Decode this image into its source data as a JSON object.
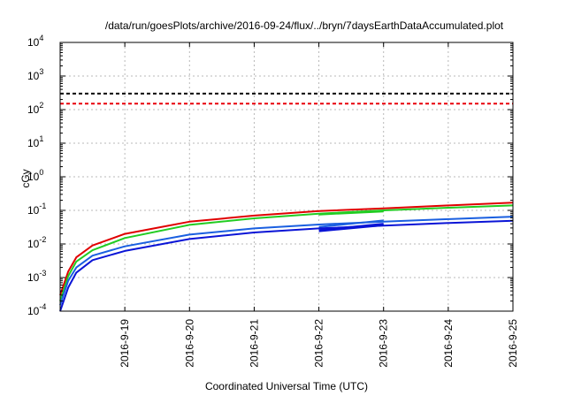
{
  "chart_data": {
    "type": "line",
    "title": "/data/run/goesPlots/archive/2016-09-24/flux/../bryn/7daysEarthDataAccumulated.plot",
    "xlabel": "Coordinated Universal Time (UTC)",
    "ylabel": "cGy",
    "x_tick_labels": [
      "2016-9-19",
      "2016-9-20",
      "2016-9-21",
      "2016-9-22",
      "2016-9-23",
      "2016-9-24",
      "2016-9-25"
    ],
    "y_tick_labels": [
      {
        "base": "10",
        "exp": "-4"
      },
      {
        "base": "10",
        "exp": "-3"
      },
      {
        "base": "10",
        "exp": "-2"
      },
      {
        "base": "10",
        "exp": "-1"
      },
      {
        "base": "10",
        "exp": "0"
      },
      {
        "base": "10",
        "exp": "1"
      },
      {
        "base": "10",
        "exp": "2"
      },
      {
        "base": "10",
        "exp": "3"
      },
      {
        "base": "10",
        "exp": "4"
      }
    ],
    "xlim": [
      "2016-09-18T00:00",
      "2016-09-25T00:00"
    ],
    "ylim": [
      0.0001,
      10000
    ],
    "yscale": "log",
    "grid": true,
    "reference_lines": [
      {
        "y": 300,
        "color": "#000000",
        "style": "dashed"
      },
      {
        "y": 150,
        "color": "#e8000b",
        "style": "dashed"
      }
    ],
    "series": [
      {
        "color": "#e00000",
        "segments": [
          [
            [
              "2016-09-18T00:00",
              0.0003
            ],
            [
              "2016-09-18T03:00",
              0.0015
            ],
            [
              "2016-09-18T06:00",
              0.004
            ],
            [
              "2016-09-18T12:00",
              0.009
            ],
            [
              "2016-09-19T00:00",
              0.02
            ],
            [
              "2016-09-20T00:00",
              0.046
            ],
            [
              "2016-09-21T00:00",
              0.07
            ],
            [
              "2016-09-22T00:00",
              0.095
            ],
            [
              "2016-09-23T00:00",
              0.115
            ],
            [
              "2016-09-24T00:00",
              0.14
            ],
            [
              "2016-09-25T00:00",
              0.17
            ]
          ]
        ]
      },
      {
        "color": "#22cc22",
        "segments": [
          [
            [
              "2016-09-18T00:00",
              0.0002
            ],
            [
              "2016-09-18T03:00",
              0.0011
            ],
            [
              "2016-09-18T06:00",
              0.003
            ],
            [
              "2016-09-18T12:00",
              0.0065
            ],
            [
              "2016-09-19T00:00",
              0.015
            ],
            [
              "2016-09-20T00:00",
              0.037
            ],
            [
              "2016-09-21T00:00",
              0.058
            ],
            [
              "2016-09-22T00:00",
              0.08
            ],
            [
              "2016-09-23T00:00",
              0.1
            ],
            [
              "2016-09-24T00:00",
              0.12
            ],
            [
              "2016-09-25T00:00",
              0.14
            ]
          ],
          [
            [
              "2016-09-22T00:00",
              0.075
            ],
            [
              "2016-09-23T00:00",
              0.093
            ]
          ]
        ]
      },
      {
        "color": "#1a5fe0",
        "segments": [
          [
            [
              "2016-09-18T00:00",
              0.00015
            ],
            [
              "2016-09-18T03:00",
              0.0008
            ],
            [
              "2016-09-18T06:00",
              0.002
            ],
            [
              "2016-09-18T12:00",
              0.0045
            ],
            [
              "2016-09-19T00:00",
              0.0085
            ],
            [
              "2016-09-20T00:00",
              0.019
            ],
            [
              "2016-09-21T00:00",
              0.029
            ],
            [
              "2016-09-22T00:00",
              0.038
            ],
            [
              "2016-09-23T00:00",
              0.046
            ],
            [
              "2016-09-24T00:00",
              0.055
            ],
            [
              "2016-09-25T00:00",
              0.065
            ]
          ],
          [
            [
              "2016-09-22T00:00",
              0.032
            ],
            [
              "2016-09-23T00:00",
              0.05
            ]
          ]
        ]
      },
      {
        "color": "#0a14d6",
        "segments": [
          [
            [
              "2016-09-18T00:00",
              0.0001
            ],
            [
              "2016-09-18T03:00",
              0.0005
            ],
            [
              "2016-09-18T06:00",
              0.0014
            ],
            [
              "2016-09-18T12:00",
              0.0033
            ],
            [
              "2016-09-19T00:00",
              0.0062
            ],
            [
              "2016-09-20T00:00",
              0.014
            ],
            [
              "2016-09-21T00:00",
              0.022
            ],
            [
              "2016-09-22T00:00",
              0.029
            ],
            [
              "2016-09-23T00:00",
              0.035
            ],
            [
              "2016-09-24T00:00",
              0.042
            ],
            [
              "2016-09-25T00:00",
              0.049
            ]
          ],
          [
            [
              "2016-09-22T00:00",
              0.026
            ],
            [
              "2016-09-23T00:00",
              0.04
            ]
          ],
          [
            [
              "2016-09-22T00:00",
              0.024
            ],
            [
              "2016-09-23T00:00",
              0.036
            ]
          ]
        ]
      }
    ]
  }
}
